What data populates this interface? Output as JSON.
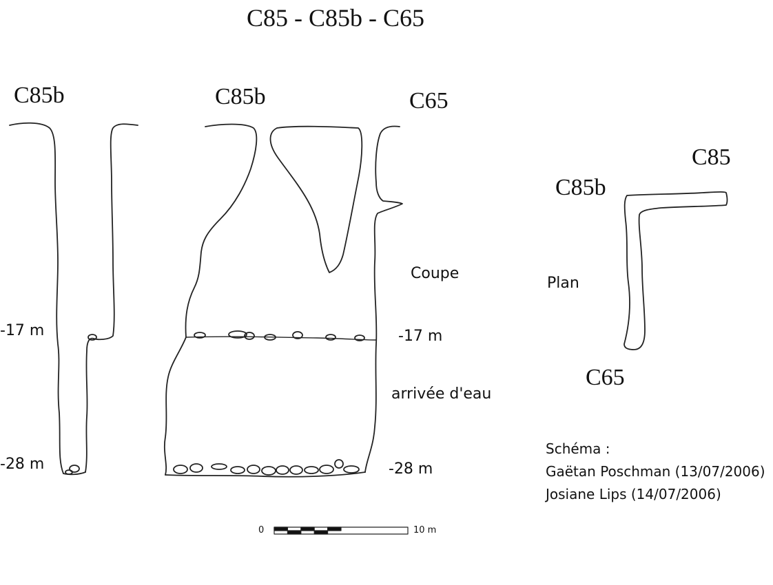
{
  "title": "C85 - C85b - C65",
  "left_section": {
    "label": "C85b",
    "depth_17": "-17 m",
    "depth_28": "-28 m"
  },
  "coupe_section": {
    "label_left": "C85b",
    "label_right": "C65",
    "caption": "Coupe",
    "depth_17": "-17 m",
    "water_note": "arrivée d'eau",
    "depth_28": "-28 m"
  },
  "plan_section": {
    "label_top": "C85",
    "label_left": "C85b",
    "caption": "Plan",
    "label_bottom": "C65"
  },
  "credits": {
    "heading": "Schéma :",
    "author_1": "Gaëtan Poschman (13/07/2006)",
    "author_2": "Josiane Lips (14/07/2006)"
  },
  "scale_bar": {
    "start": "0",
    "end": "10 m"
  }
}
